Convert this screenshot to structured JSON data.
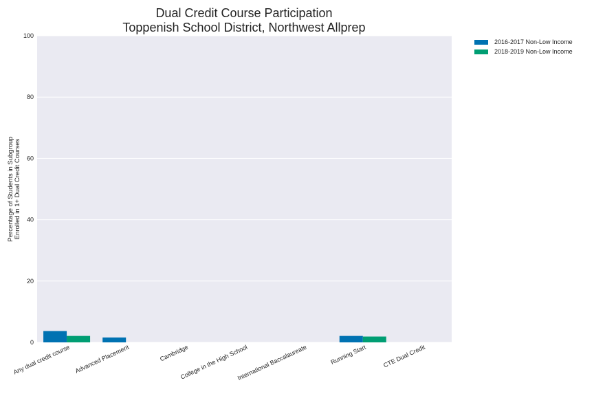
{
  "chart_data": {
    "type": "bar",
    "title": "Dual Credit Course Participation",
    "subtitle": "Toppenish School District, Northwest Allprep",
    "xlabel": "",
    "ylabel": "Percentage of Students in Subgroup\nEnrolled in 1+ Dual Credit Courses",
    "ylabel_line1": "Percentage of Students in Subgroup",
    "ylabel_line2": "Enrolled in 1+ Dual Credit Courses",
    "ylim": [
      0,
      100
    ],
    "yticks": [
      0,
      20,
      40,
      60,
      80,
      100
    ],
    "categories": [
      "Any dual credit course",
      "Advanced Placement",
      "Cambridge",
      "College in the High School",
      "International Baccalaureate",
      "Running Start",
      "CTE Dual Credit"
    ],
    "series": [
      {
        "name": "2016-2017 Non-Low Income",
        "color": "#0072b2",
        "values": [
          3.7,
          1.6,
          0,
          0,
          0,
          2.1,
          0
        ]
      },
      {
        "name": "2018-2019 Non-Low Income",
        "color": "#009e73",
        "values": [
          2.1,
          0,
          0,
          0,
          0,
          1.9,
          0
        ]
      }
    ],
    "legend_position": "upper-right-outside",
    "grid": true,
    "background": "#eaeaf2"
  }
}
